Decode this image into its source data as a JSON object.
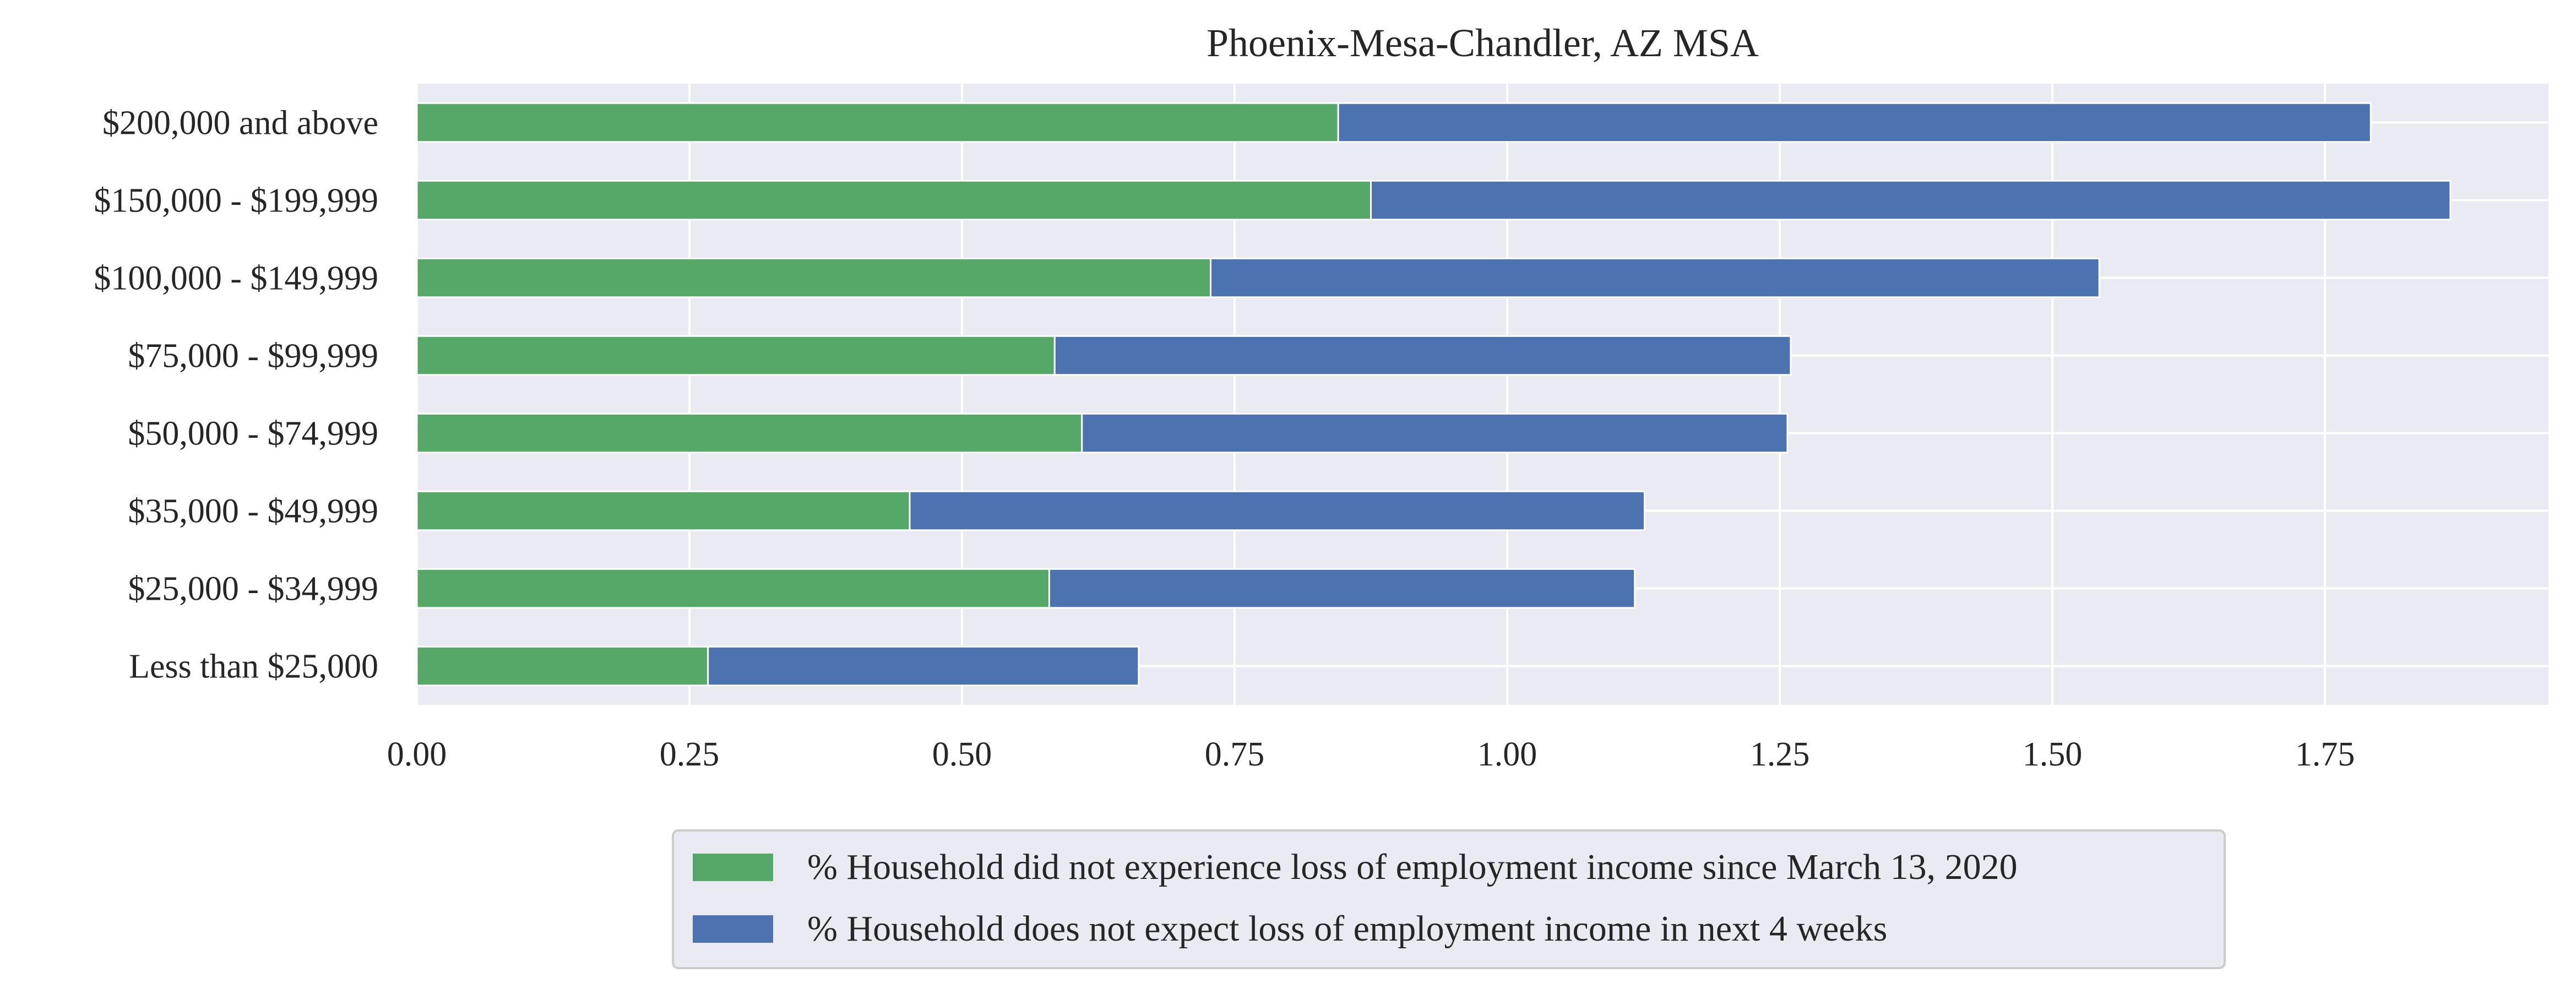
{
  "chart_data": {
    "type": "bar",
    "orientation": "horizontal",
    "stacked": true,
    "title": "Phoenix-Mesa-Chandler, AZ MSA",
    "xlabel": "",
    "ylabel": "",
    "categories": [
      "$200,000 and above",
      "$150,000 - $199,999",
      "$100,000 - $149,999",
      "$75,000 - $99,999",
      "$50,000 - $74,999",
      "$35,000 - $49,999",
      "$25,000 - $34,999",
      "Less than $25,000"
    ],
    "series": [
      {
        "name": "% Household did not experience loss of employment income since March 13, 2020",
        "color": "#55a868",
        "values": [
          0.845,
          0.875,
          0.728,
          0.585,
          0.61,
          0.452,
          0.58,
          0.267
        ]
      },
      {
        "name": "% Household does not expect loss of employment income in next 4 weeks",
        "color": "#4c72b0",
        "values": [
          0.947,
          0.99,
          0.815,
          0.675,
          0.647,
          0.674,
          0.537,
          0.395
        ]
      }
    ],
    "xlim": [
      0,
      1.955
    ],
    "xticks": [
      "0.00",
      "0.25",
      "0.50",
      "0.75",
      "1.00",
      "1.25",
      "1.50",
      "1.75"
    ],
    "xtick_values": [
      0,
      0.25,
      0.5,
      0.75,
      1.0,
      1.25,
      1.5,
      1.75
    ],
    "grid": true,
    "legend_position": "bottom-center",
    "colors": {
      "plot_background": "#eaeaf2",
      "grid": "#ffffff",
      "text": "#262626"
    }
  }
}
